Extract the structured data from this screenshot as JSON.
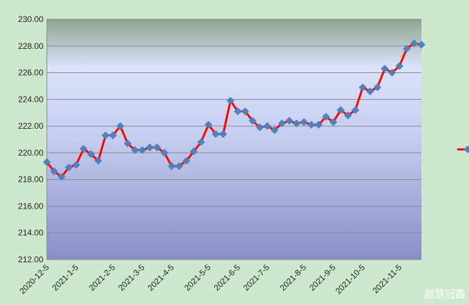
{
  "chart_data": {
    "type": "line",
    "categories": [
      "2020-12-5",
      null,
      null,
      null,
      "2021-1-5",
      null,
      null,
      null,
      null,
      "2021-2-5",
      null,
      null,
      null,
      "2021-3-5",
      null,
      null,
      null,
      "2021-4-5",
      null,
      null,
      null,
      null,
      "2021-5-5",
      null,
      null,
      null,
      "2021-6-5",
      null,
      null,
      null,
      "2021-7-5",
      null,
      null,
      null,
      null,
      "2021-8-5",
      null,
      null,
      null,
      "2021-9-5",
      null,
      null,
      null,
      "2021-10-5",
      null,
      null,
      null,
      null,
      "2021-11-5",
      null,
      null,
      null
    ],
    "series": [
      {
        "color": "#ff0000",
        "marker_color": "#4f81bd",
        "values": [
          219.3,
          218.6,
          218.2,
          218.9,
          219.1,
          220.3,
          219.9,
          219.4,
          221.3,
          221.3,
          222.0,
          220.7,
          220.2,
          220.2,
          220.4,
          220.4,
          220.0,
          219.0,
          219.0,
          219.4,
          220.1,
          220.8,
          222.1,
          221.4,
          221.4,
          223.9,
          223.1,
          223.1,
          222.4,
          221.9,
          222.0,
          221.7,
          222.2,
          222.4,
          222.2,
          222.3,
          222.1,
          222.1,
          222.7,
          222.3,
          223.2,
          222.8,
          223.2,
          224.9,
          224.6,
          224.9,
          226.3,
          226.0,
          226.5,
          227.8,
          228.2,
          228.1
        ]
      }
    ],
    "ylim": [
      212,
      230
    ],
    "yticks": [
      {
        "value": 212,
        "label": "212.00"
      },
      {
        "value": 214,
        "label": "214.00"
      },
      {
        "value": 216,
        "label": "216.00"
      },
      {
        "value": 218,
        "label": "218.00"
      },
      {
        "value": 220,
        "label": "220.00"
      },
      {
        "value": 222,
        "label": "222.00"
      },
      {
        "value": 224,
        "label": "224.00"
      },
      {
        "value": 226,
        "label": "226.00"
      },
      {
        "value": 228,
        "label": "228.00"
      },
      {
        "value": 230,
        "label": "230.00"
      }
    ],
    "grid": true,
    "watermark": "融慧冠鑫"
  }
}
